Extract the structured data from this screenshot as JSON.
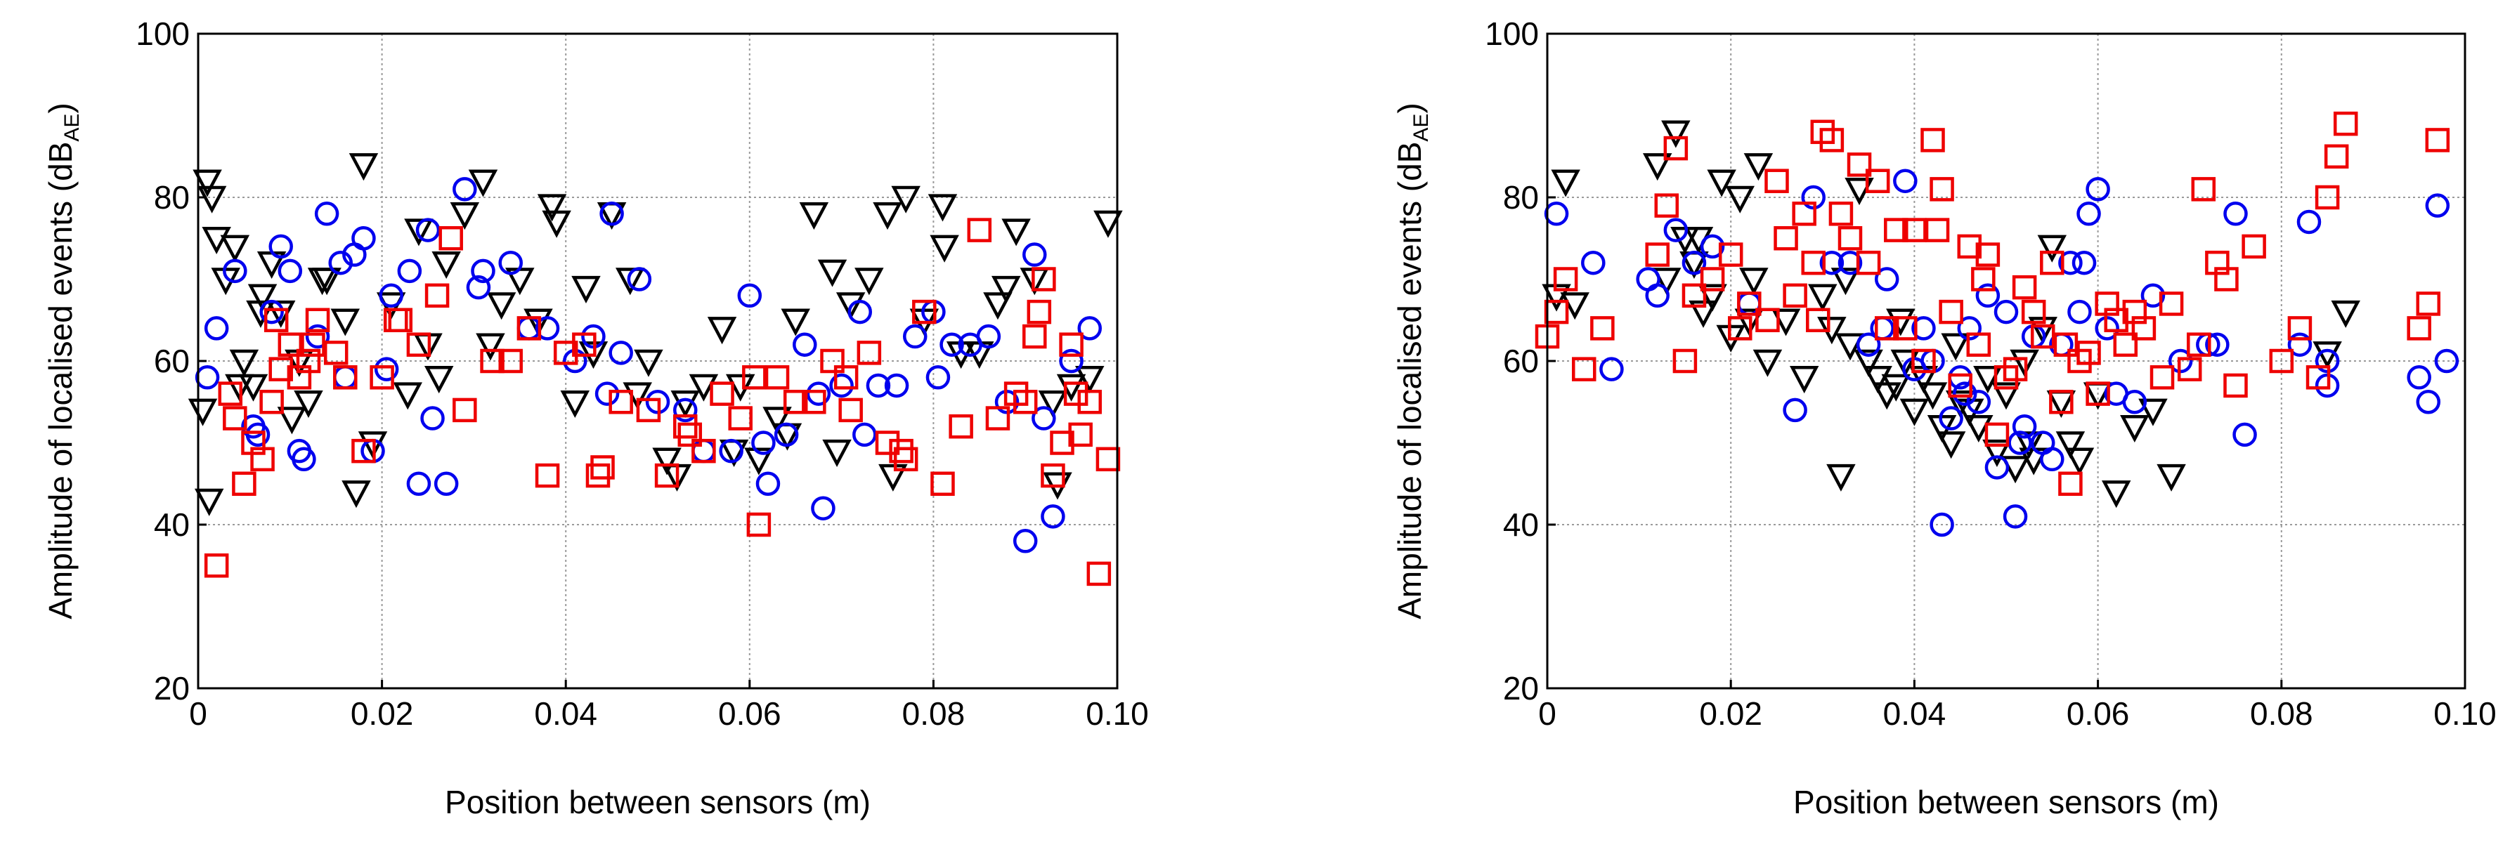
{
  "chart_data": [
    {
      "type": "scatter",
      "xlabel": "Position between sensors (m)",
      "ylabel": "Amplitude of localised events (dB",
      "ylabel_sub": "AE",
      "ylabel_close": ")",
      "xlim": [
        0,
        0.1
      ],
      "ylim": [
        20,
        100
      ],
      "xticks": [
        0,
        0.02,
        0.04,
        0.06,
        0.08,
        0.1
      ],
      "xtick_labels": [
        "0",
        "0.02",
        "0.04",
        "0.06",
        "0.08",
        "0.10"
      ],
      "yticks": [
        20,
        40,
        60,
        80,
        100
      ],
      "ytick_labels": [
        "20",
        "40",
        "60",
        "80",
        "100"
      ],
      "grid": true,
      "series": [
        {
          "name": "triangles",
          "marker": "triangle-down",
          "color": "#000000",
          "x": [
            0.0005,
            0.001,
            0.0015,
            0.002,
            0.003,
            0.004,
            0.005,
            0.006,
            0.007,
            0.008,
            0.009,
            0.011,
            0.012,
            0.014,
            0.016,
            0.018,
            0.019,
            0.021,
            0.024,
            0.025,
            0.027,
            0.029,
            0.031,
            0.033,
            0.035,
            0.037,
            0.039,
            0.041,
            0.043,
            0.045,
            0.047,
            0.049,
            0.051,
            0.053,
            0.055,
            0.057,
            0.059,
            0.061,
            0.063,
            0.065,
            0.067,
            0.069,
            0.071,
            0.073,
            0.075,
            0.077,
            0.079,
            0.081,
            0.083,
            0.085,
            0.087,
            0.089,
            0.091,
            0.093,
            0.095,
            0.097,
            0.099,
            0.0012,
            0.0045,
            0.0068,
            0.0102,
            0.0135,
            0.0172,
            0.0228,
            0.0262,
            0.0318,
            0.0385,
            0.0422,
            0.0478,
            0.0521,
            0.0583,
            0.0641,
            0.0695,
            0.0756,
            0.0812,
            0.0879,
            0.0935
          ],
          "y": [
            54,
            82,
            80,
            75,
            70,
            74,
            60,
            57,
            68,
            72,
            66,
            60,
            55,
            70,
            65,
            84,
            50,
            67,
            76,
            62,
            72,
            78,
            82,
            67,
            70,
            65,
            77,
            55,
            61,
            78,
            70,
            60,
            48,
            55,
            57,
            64,
            57,
            48,
            53,
            65,
            78,
            71,
            67,
            70,
            78,
            80,
            65,
            79,
            61,
            61,
            67,
            76,
            70,
            55,
            57,
            58,
            77,
            43,
            57,
            66,
            53,
            70,
            44,
            56,
            58,
            62,
            79,
            69,
            56,
            46,
            49,
            51,
            49,
            46,
            74,
            69,
            45
          ]
        },
        {
          "name": "circles",
          "marker": "circle",
          "color": "#0000ee",
          "x": [
            0.001,
            0.002,
            0.004,
            0.006,
            0.008,
            0.009,
            0.01,
            0.011,
            0.013,
            0.014,
            0.016,
            0.017,
            0.018,
            0.019,
            0.021,
            0.023,
            0.024,
            0.025,
            0.027,
            0.029,
            0.031,
            0.034,
            0.036,
            0.038,
            0.041,
            0.043,
            0.045,
            0.046,
            0.048,
            0.05,
            0.053,
            0.055,
            0.058,
            0.06,
            0.062,
            0.064,
            0.066,
            0.068,
            0.07,
            0.072,
            0.074,
            0.076,
            0.078,
            0.08,
            0.082,
            0.084,
            0.086,
            0.088,
            0.09,
            0.091,
            0.092,
            0.093,
            0.095,
            0.097,
            0.0065,
            0.0115,
            0.0155,
            0.0205,
            0.0255,
            0.0305,
            0.0445,
            0.0615,
            0.0675,
            0.0725,
            0.0805
          ],
          "y": [
            58,
            64,
            71,
            52,
            66,
            74,
            71,
            49,
            63,
            78,
            58,
            73,
            75,
            49,
            68,
            71,
            45,
            76,
            45,
            81,
            71,
            72,
            64,
            64,
            60,
            63,
            78,
            61,
            70,
            55,
            54,
            49,
            49,
            68,
            45,
            51,
            62,
            42,
            57,
            66,
            57,
            57,
            63,
            66,
            62,
            62,
            63,
            55,
            38,
            73,
            53,
            41,
            60,
            64,
            51,
            48,
            72,
            59,
            53,
            69,
            56,
            50,
            56,
            51,
            58
          ]
        },
        {
          "name": "squares",
          "marker": "square",
          "color": "#ee0000",
          "x": [
            0.002,
            0.004,
            0.005,
            0.006,
            0.007,
            0.008,
            0.009,
            0.01,
            0.011,
            0.012,
            0.013,
            0.015,
            0.016,
            0.018,
            0.02,
            0.022,
            0.024,
            0.026,
            0.029,
            0.032,
            0.034,
            0.036,
            0.038,
            0.04,
            0.042,
            0.044,
            0.046,
            0.049,
            0.051,
            0.053,
            0.055,
            0.057,
            0.059,
            0.061,
            0.063,
            0.065,
            0.067,
            0.069,
            0.071,
            0.073,
            0.075,
            0.077,
            0.079,
            0.081,
            0.083,
            0.085,
            0.087,
            0.089,
            0.09,
            0.091,
            0.092,
            0.093,
            0.094,
            0.095,
            0.096,
            0.097,
            0.098,
            0.099,
            0.0035,
            0.0085,
            0.0125,
            0.0215,
            0.0275,
            0.0435,
            0.0535,
            0.0605,
            0.0705,
            0.0765,
            0.0915,
            0.0955
          ],
          "y": [
            35,
            53,
            45,
            50,
            48,
            55,
            59,
            62,
            58,
            60,
            65,
            61,
            58,
            49,
            58,
            65,
            62,
            68,
            54,
            60,
            60,
            64,
            46,
            61,
            62,
            47,
            55,
            54,
            46,
            52,
            49,
            56,
            53,
            40,
            58,
            55,
            55,
            60,
            54,
            61,
            50,
            48,
            66,
            45,
            52,
            76,
            53,
            56,
            55,
            63,
            70,
            46,
            50,
            62,
            51,
            55,
            34,
            48,
            56,
            65,
            62,
            65,
            75,
            46,
            51,
            58,
            58,
            49,
            66,
            56
          ]
        }
      ]
    },
    {
      "type": "scatter",
      "xlabel": "Position between sensors (m)",
      "ylabel": "Amplitude of localised events (dB",
      "ylabel_sub": "AE",
      "ylabel_close": ")",
      "xlim": [
        0,
        0.1
      ],
      "ylim": [
        20,
        100
      ],
      "xticks": [
        0,
        0.02,
        0.04,
        0.06,
        0.08,
        0.1
      ],
      "xtick_labels": [
        "0",
        "0.02",
        "0.04",
        "0.06",
        "0.08",
        "0.10"
      ],
      "yticks": [
        20,
        40,
        60,
        80,
        100
      ],
      "ytick_labels": [
        "20",
        "40",
        "60",
        "80",
        "100"
      ],
      "grid": true,
      "series": [
        {
          "name": "triangles",
          "marker": "triangle-down",
          "color": "#000000",
          "x": [
            0.001,
            0.002,
            0.003,
            0.012,
            0.013,
            0.014,
            0.015,
            0.016,
            0.017,
            0.018,
            0.019,
            0.02,
            0.021,
            0.022,
            0.023,
            0.024,
            0.026,
            0.028,
            0.03,
            0.031,
            0.032,
            0.033,
            0.034,
            0.035,
            0.036,
            0.037,
            0.038,
            0.039,
            0.04,
            0.041,
            0.042,
            0.043,
            0.044,
            0.045,
            0.046,
            0.047,
            0.048,
            0.049,
            0.05,
            0.051,
            0.052,
            0.053,
            0.054,
            0.055,
            0.056,
            0.057,
            0.058,
            0.06,
            0.062,
            0.064,
            0.066,
            0.068,
            0.085,
            0.087,
            0.0325,
            0.0445,
            0.0525,
            0.0165,
            0.0225,
            0.0385
          ],
          "y": [
            68,
            82,
            67,
            84,
            70,
            88,
            75,
            72,
            66,
            68,
            82,
            63,
            80,
            65,
            84,
            60,
            65,
            58,
            68,
            64,
            46,
            62,
            81,
            60,
            58,
            56,
            57,
            60,
            54,
            58,
            56,
            52,
            50,
            55,
            54,
            52,
            58,
            49,
            56,
            47,
            60,
            48,
            64,
            74,
            55,
            50,
            48,
            56,
            44,
            52,
            54,
            46,
            61,
            66,
            70,
            62,
            50,
            75,
            70,
            65
          ]
        },
        {
          "name": "circles",
          "marker": "circle",
          "color": "#0000ee",
          "x": [
            0.001,
            0.005,
            0.007,
            0.011,
            0.012,
            0.014,
            0.016,
            0.018,
            0.022,
            0.027,
            0.029,
            0.031,
            0.033,
            0.035,
            0.037,
            0.039,
            0.04,
            0.041,
            0.042,
            0.043,
            0.044,
            0.045,
            0.046,
            0.047,
            0.048,
            0.049,
            0.05,
            0.051,
            0.052,
            0.053,
            0.054,
            0.055,
            0.056,
            0.057,
            0.058,
            0.059,
            0.06,
            0.061,
            0.062,
            0.064,
            0.066,
            0.069,
            0.072,
            0.073,
            0.075,
            0.076,
            0.082,
            0.083,
            0.085,
            0.085,
            0.095,
            0.096,
            0.097,
            0.098,
            0.0455,
            0.0515,
            0.0365,
            0.0585
          ],
          "y": [
            78,
            72,
            59,
            70,
            68,
            76,
            72,
            74,
            67,
            54,
            80,
            72,
            72,
            62,
            70,
            82,
            59,
            64,
            60,
            40,
            53,
            58,
            64,
            55,
            68,
            47,
            66,
            41,
            52,
            63,
            50,
            48,
            62,
            72,
            66,
            78,
            81,
            64,
            56,
            55,
            68,
            60,
            62,
            62,
            78,
            51,
            62,
            77,
            60,
            57,
            58,
            55,
            79,
            60,
            56,
            50,
            64,
            72
          ]
        },
        {
          "name": "squares",
          "marker": "square",
          "color": "#ee0000",
          "x": [
            0,
            0.001,
            0.002,
            0.004,
            0.006,
            0.012,
            0.013,
            0.014,
            0.015,
            0.016,
            0.018,
            0.02,
            0.021,
            0.022,
            0.024,
            0.025,
            0.026,
            0.027,
            0.028,
            0.029,
            0.03,
            0.031,
            0.032,
            0.033,
            0.034,
            0.035,
            0.036,
            0.037,
            0.038,
            0.039,
            0.04,
            0.041,
            0.042,
            0.043,
            0.044,
            0.045,
            0.046,
            0.047,
            0.048,
            0.049,
            0.05,
            0.051,
            0.052,
            0.053,
            0.054,
            0.055,
            0.056,
            0.057,
            0.058,
            0.059,
            0.06,
            0.061,
            0.062,
            0.063,
            0.064,
            0.065,
            0.067,
            0.068,
            0.07,
            0.071,
            0.073,
            0.074,
            0.075,
            0.077,
            0.08,
            0.082,
            0.084,
            0.085,
            0.086,
            0.087,
            0.095,
            0.096,
            0.097,
            0.0295,
            0.0425,
            0.0475,
            0.0565,
            0.0715
          ],
          "y": [
            63,
            66,
            70,
            59,
            64,
            73,
            79,
            86,
            60,
            68,
            70,
            73,
            64,
            67,
            65,
            82,
            75,
            68,
            78,
            72,
            88,
            87,
            78,
            75,
            84,
            72,
            82,
            64,
            76,
            64,
            76,
            60,
            87,
            81,
            66,
            57,
            74,
            62,
            73,
            51,
            58,
            59,
            69,
            66,
            63,
            72,
            55,
            45,
            60,
            61,
            56,
            67,
            65,
            62,
            66,
            64,
            58,
            67,
            59,
            62,
            72,
            70,
            57,
            74,
            60,
            64,
            58,
            80,
            85,
            89,
            64,
            67,
            87,
            65,
            76,
            70,
            62,
            81
          ]
        }
      ]
    }
  ]
}
